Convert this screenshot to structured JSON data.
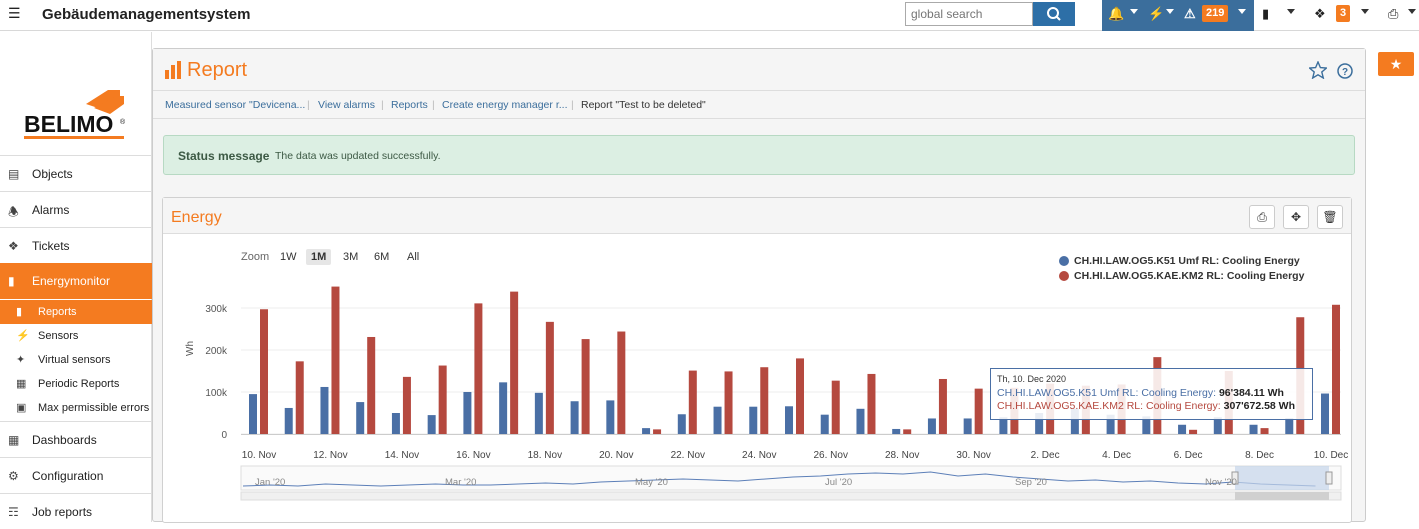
{
  "topbar": {
    "title": "Gebäudemanagementsystem",
    "search_placeholder": "global search",
    "alarm_count": "219",
    "ticket_count": "3"
  },
  "sidebar": {
    "logo_text": "BELIMO",
    "items": [
      {
        "label": "Objects",
        "icon": "building-icon"
      },
      {
        "label": "Alarms",
        "icon": "bell-icon"
      },
      {
        "label": "Tickets",
        "icon": "tag-icon"
      },
      {
        "label": "Energymonitor",
        "icon": "bar-chart-icon"
      },
      {
        "label": "Dashboards",
        "icon": "grid-icon"
      },
      {
        "label": "Configuration",
        "icon": "gears-icon"
      },
      {
        "label": "Job reports",
        "icon": "document-icon"
      }
    ],
    "subitems": [
      {
        "label": "Reports",
        "icon": "bar-chart-icon"
      },
      {
        "label": "Sensors",
        "icon": "bolt-icon"
      },
      {
        "label": "Virtual sensors",
        "icon": "wand-icon"
      },
      {
        "label": "Periodic Reports",
        "icon": "table-icon"
      },
      {
        "label": "Max permissible errors",
        "icon": "error-box-icon"
      }
    ]
  },
  "report": {
    "title": "Report",
    "breadcrumbs": [
      "Measured sensor \"Devicena...",
      "View alarms",
      "Reports",
      "Create energy manager r...",
      "Report \"Test to be deleted\""
    ]
  },
  "status": {
    "title": "Status message",
    "message": "The data was updated successfully."
  },
  "energy": {
    "title": "Energy",
    "zoom_label": "Zoom",
    "zoom_options": [
      "1W",
      "1M",
      "3M",
      "6M",
      "All"
    ],
    "zoom_selected": "1M"
  },
  "tooltip": {
    "date": "Th, 10. Dec 2020",
    "row1_label": "CH.HI.LAW.OG5.K51 Umf RL: Cooling Energy:",
    "row1_value": "96'384.11 Wh",
    "row2_label": "CH.HI.LAW.OG5.KAE.KM2 RL: Cooling Energy:",
    "row2_value": "307'672.58 Wh"
  },
  "colors": {
    "accent": "#f47b20",
    "series1": "#4a6fa5",
    "series2": "#b5493f"
  },
  "chart_data": {
    "type": "bar",
    "ylabel": "Wh",
    "ylim": [
      0,
      320000
    ],
    "yticks": [
      0,
      100000,
      200000,
      300000
    ],
    "ytick_labels": [
      "0",
      "100k",
      "200k",
      "300k"
    ],
    "categories": [
      "10. Nov",
      "11. Nov",
      "12. Nov",
      "13. Nov",
      "14. Nov",
      "15. Nov",
      "16. Nov",
      "17. Nov",
      "18. Nov",
      "19. Nov",
      "20. Nov",
      "21. Nov",
      "22. Nov",
      "23. Nov",
      "24. Nov",
      "25. Nov",
      "26. Nov",
      "27. Nov",
      "28. Nov",
      "29. Nov",
      "30. Nov",
      "1. Dec",
      "2. Dec",
      "3. Dec",
      "4. Dec",
      "5. Dec",
      "6. Dec",
      "7. Dec",
      "8. Dec",
      "9. Dec",
      "10. Dec"
    ],
    "xtick_labels": [
      "10. Nov",
      "12. Nov",
      "14. Nov",
      "16. Nov",
      "18. Nov",
      "20. Nov",
      "22. Nov",
      "24. Nov",
      "26. Nov",
      "28. Nov",
      "30. Nov",
      "2. Dec",
      "4. Dec",
      "6. Dec",
      "8. Dec",
      "10. Dec"
    ],
    "series": [
      {
        "name": "CH.HI.LAW.OG5.K51 Umf RL: Cooling Energy",
        "values": [
          95000,
          62000,
          112000,
          76000,
          50000,
          45000,
          100000,
          123000,
          98000,
          78000,
          80000,
          14000,
          47000,
          65000,
          65000,
          66000,
          46000,
          60000,
          12000,
          37000,
          37000,
          40000,
          50000,
          60000,
          46000,
          42000,
          22000,
          40000,
          22000,
          38000,
          96384
        ]
      },
      {
        "name": "CH.HI.LAW.OG5.KAE.KM2 RL: Cooling Energy",
        "values": [
          297000,
          173000,
          351000,
          231000,
          136000,
          163000,
          311000,
          339000,
          267000,
          226000,
          244000,
          11000,
          151000,
          149000,
          159000,
          180000,
          127000,
          143000,
          11000,
          131000,
          108000,
          110000,
          120000,
          115000,
          118000,
          183000,
          10000,
          150000,
          14000,
          278000,
          307673
        ]
      }
    ],
    "navigator_labels": [
      "Jan '20",
      "Mar '20",
      "May '20",
      "Jul '20",
      "Sep '20",
      "Nov '20"
    ]
  }
}
